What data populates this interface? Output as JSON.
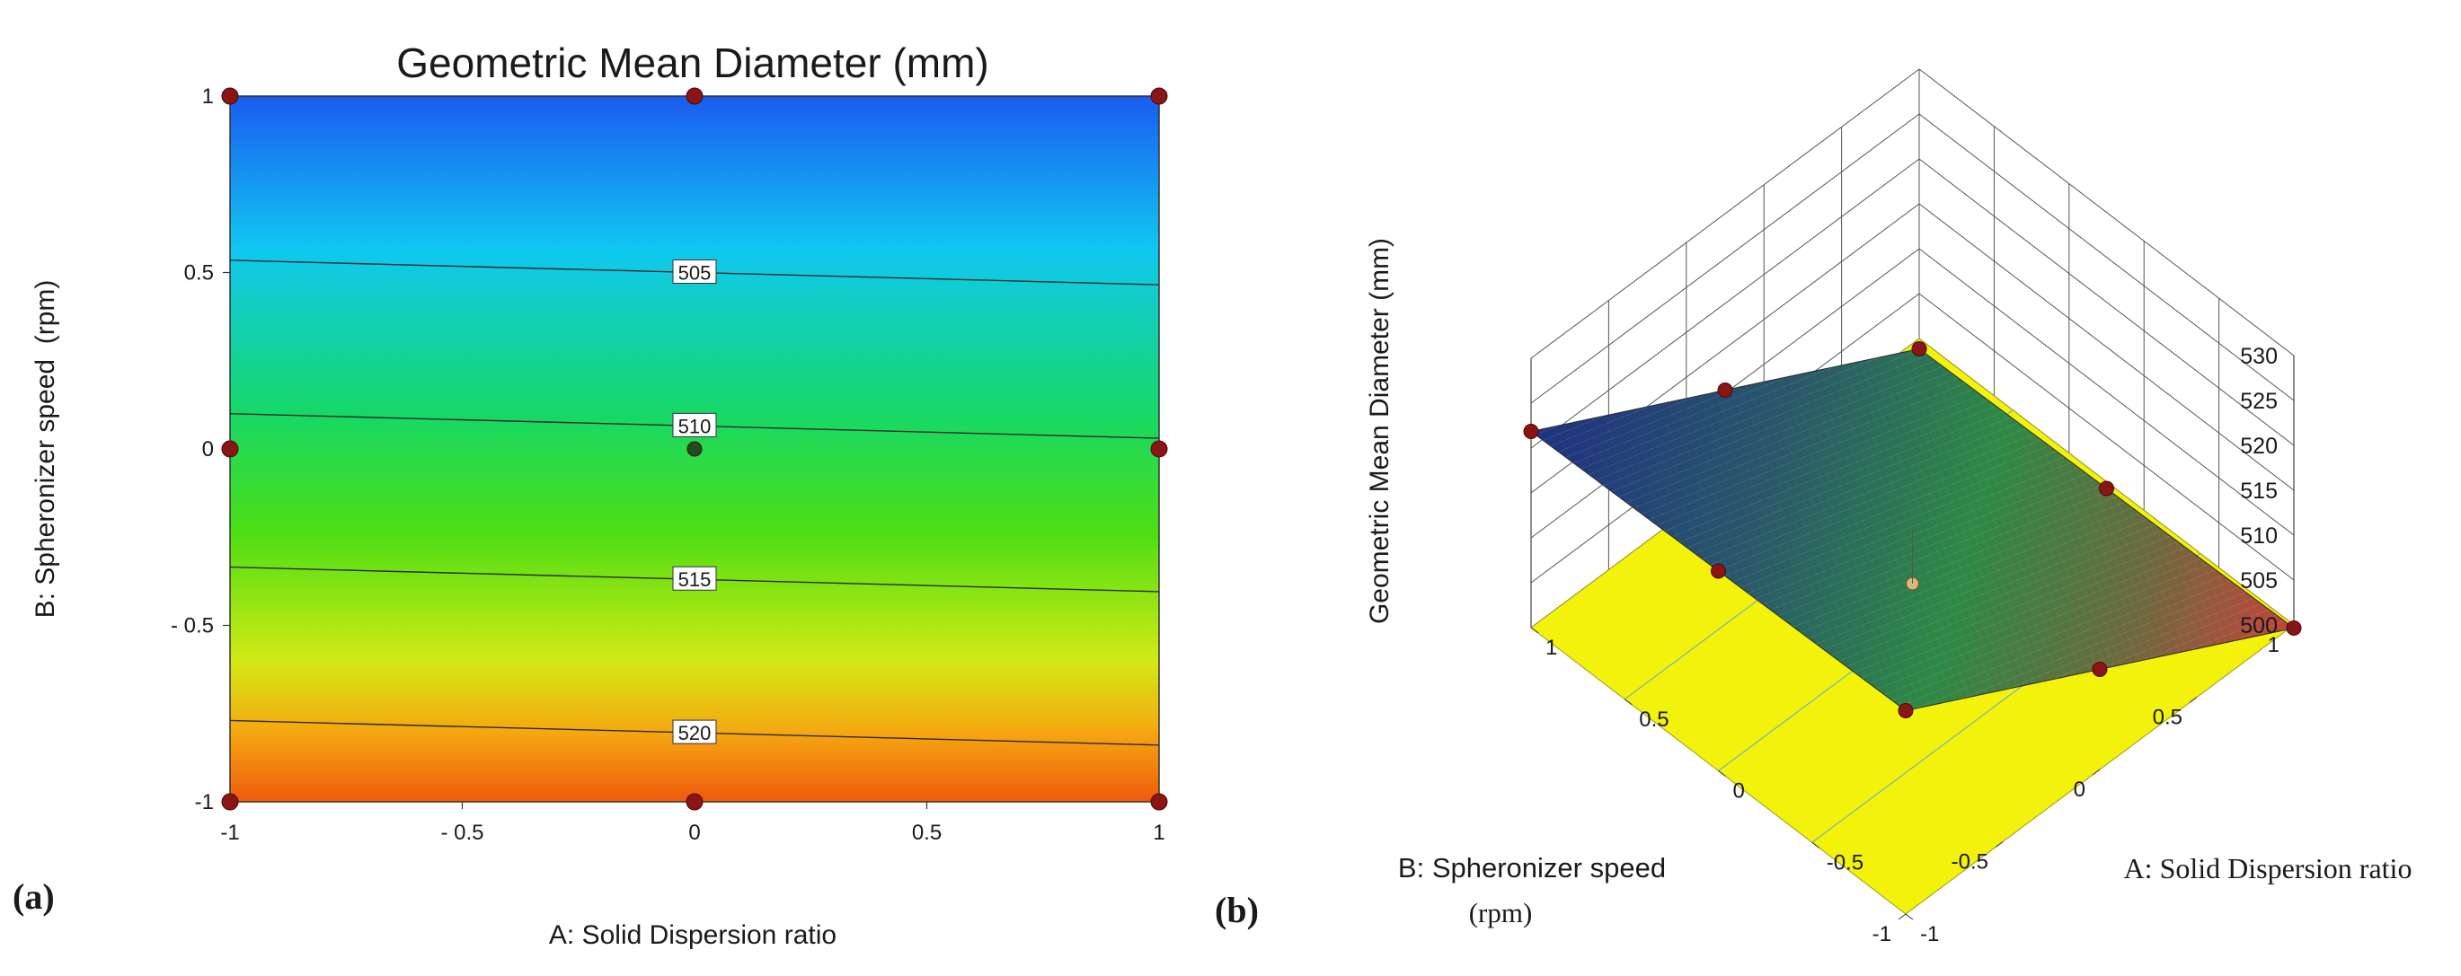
{
  "chart_data": [
    {
      "panel_label": "(a)",
      "type": "contour",
      "title": "Geometric Mean Diameter (mm)",
      "xlabel": "A: Solid Dispersion ratio",
      "ylabel": "B: Spheronizer speed  (rpm)",
      "xlim": [
        -1,
        1
      ],
      "ylim": [
        -1,
        1
      ],
      "x_ticks": [
        -1,
        -0.5,
        0,
        0.5,
        1
      ],
      "x_tick_labels": [
        "-1",
        "- 0.5",
        "0",
        "0.5",
        "1"
      ],
      "y_ticks": [
        -1,
        -0.5,
        0,
        0.5,
        1
      ],
      "y_tick_labels": [
        "-1",
        "- 0.5",
        "0",
        "0.5",
        "1"
      ],
      "model": {
        "intercept": 510.75,
        "coef_A": -0.4,
        "coef_B": -11.5
      },
      "contour_levels": [
        505,
        510,
        515,
        520
      ],
      "contour_labels": [
        "505",
        "510",
        "515",
        "520"
      ],
      "design_points": [
        {
          "a": -1,
          "b": 1
        },
        {
          "a": 0,
          "b": 1
        },
        {
          "a": 1,
          "b": 1
        },
        {
          "a": -1,
          "b": 0
        },
        {
          "a": 0,
          "b": 0
        },
        {
          "a": 1,
          "b": 0
        },
        {
          "a": -1,
          "b": -1
        },
        {
          "a": 0,
          "b": -1
        },
        {
          "a": 1,
          "b": -1
        }
      ]
    },
    {
      "panel_label": "(b)",
      "type": "surface3d",
      "zlabel": "Geometric Mean Diameter (mm)",
      "xlabel": "A: Solid Dispersion ratio",
      "ylabel_line1": "B: Spheronizer speed",
      "ylabel_line2": "(rpm)",
      "zlim": [
        500,
        530
      ],
      "z_ticks": [
        500,
        505,
        510,
        515,
        520,
        525,
        530
      ],
      "z_tick_labels": [
        "500",
        "505",
        "510",
        "515",
        "520",
        "525",
        "530"
      ],
      "a_ticks": [
        1,
        0.5,
        0,
        -0.5,
        -1
      ],
      "a_tick_labels": [
        "1",
        "0.5",
        "0",
        "-0.5",
        "-1"
      ],
      "b_ticks": [
        1,
        0.5,
        0,
        -0.5,
        -1
      ],
      "b_tick_labels": [
        "1",
        "0.5",
        "0",
        "-0.5",
        "-1"
      ],
      "model": {
        "intercept": 510.75,
        "coef_A": -0.4,
        "coef_B": -11.5
      },
      "colors": {
        "floor": "#f2f20a",
        "low": "#1a2f8c",
        "mid": "#2e8a4c",
        "high": "#c85040",
        "point": "#8b1414"
      }
    }
  ]
}
